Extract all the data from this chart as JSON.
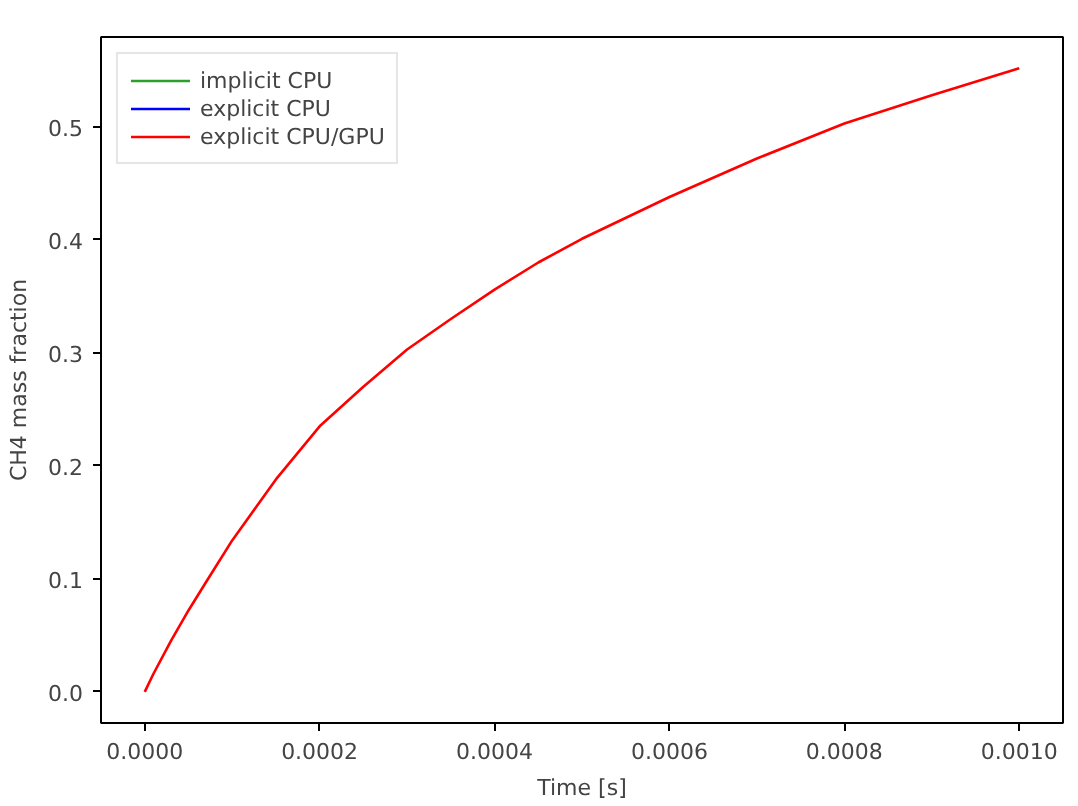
{
  "chart_data": {
    "type": "line",
    "xlabel": "Time [s]",
    "ylabel": "CH4 mass fraction",
    "x": [
      0,
      1e-05,
      3e-05,
      5e-05,
      7e-05,
      0.0001,
      0.00015,
      0.0002,
      0.00025,
      0.0003,
      0.00035,
      0.0004,
      0.00045,
      0.0005,
      0.0006,
      0.0007,
      0.0008,
      0.0009,
      0.001
    ],
    "series": [
      {
        "name": "implicit CPU",
        "color": "#2ca02c",
        "values": [
          null,
          null,
          null,
          null,
          null,
          null,
          null,
          null,
          null,
          null,
          null,
          null,
          null,
          null,
          null,
          null,
          null,
          null,
          null
        ]
      },
      {
        "name": "explicit CPU",
        "color": "#0000ff",
        "values": [
          null,
          null,
          null,
          null,
          null,
          null,
          null,
          null,
          null,
          null,
          null,
          null,
          null,
          null,
          null,
          null,
          null,
          null,
          null
        ]
      },
      {
        "name": "explicit CPU/GPU",
        "color": "#ff0000",
        "values": [
          0,
          0.016,
          0.045,
          0.072,
          0.097,
          0.134,
          0.188,
          0.235,
          0.27,
          0.303,
          0.33,
          0.356,
          0.38,
          0.401,
          0.438,
          0.472,
          0.503,
          0.528,
          0.552
        ]
      }
    ],
    "xlim": [
      -5e-05,
      0.00105
    ],
    "ylim": [
      -0.0276,
      0.5796
    ],
    "xticks": [
      {
        "value": 0,
        "label": "0.0000"
      },
      {
        "value": 0.0002,
        "label": "0.0002"
      },
      {
        "value": 0.0004,
        "label": "0.0004"
      },
      {
        "value": 0.0006,
        "label": "0.0006"
      },
      {
        "value": 0.0008,
        "label": "0.0008"
      },
      {
        "value": 0.001,
        "label": "0.0010"
      }
    ],
    "yticks": [
      {
        "value": 0,
        "label": "0.0"
      },
      {
        "value": 0.1,
        "label": "0.1"
      },
      {
        "value": 0.2,
        "label": "0.2"
      },
      {
        "value": 0.3,
        "label": "0.3"
      },
      {
        "value": 0.4,
        "label": "0.4"
      },
      {
        "value": 0.5,
        "label": "0.5"
      }
    ],
    "grid": false,
    "legend": "top left",
    "line_style": "solid"
  }
}
